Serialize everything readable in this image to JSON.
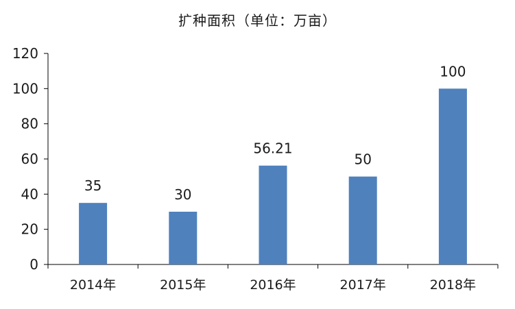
{
  "chart_data": {
    "type": "bar",
    "title": "扩种面积（单位：万亩）",
    "xlabel": "",
    "ylabel": "",
    "categories": [
      "2014年",
      "2015年",
      "2016年",
      "2017年",
      "2018年"
    ],
    "values": [
      35,
      30,
      56.21,
      50,
      100
    ],
    "data_labels": [
      "35",
      "30",
      "56.21",
      "50",
      "100"
    ],
    "ylim": [
      0,
      120
    ],
    "yticks": [
      0,
      20,
      40,
      60,
      80,
      100,
      120
    ],
    "grid": false,
    "legend": "none",
    "bar_color": "#4F81BD",
    "axis_color": "#000000"
  }
}
